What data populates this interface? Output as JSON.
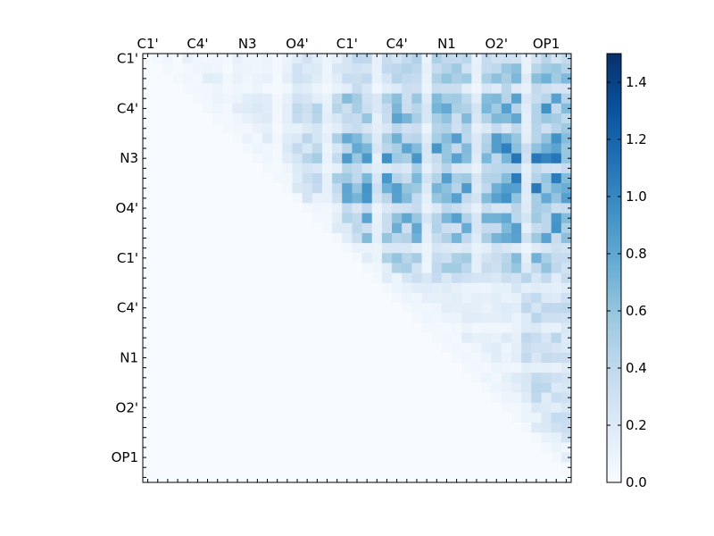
{
  "chart_data": {
    "type": "heatmap",
    "n": 43,
    "x_tick_labels": [
      "C1'",
      "C4'",
      "N3",
      "O4'",
      "C1'",
      "C4'",
      "N1",
      "O2'",
      "OP1"
    ],
    "y_tick_labels": [
      "C1'",
      "C4'",
      "N3",
      "O4'",
      "C1'",
      "C4'",
      "N1",
      "O2'",
      "OP1"
    ],
    "tick_indices": [
      0,
      5,
      10,
      15,
      20,
      25,
      30,
      35,
      40
    ],
    "colorbar": {
      "min": 0.0,
      "max": 1.5,
      "ticks": [
        "0.0",
        "0.2",
        "0.4",
        "0.6",
        "0.8",
        "1.0",
        "1.2",
        "1.4"
      ],
      "tick_values": [
        0.0,
        0.2,
        0.4,
        0.6,
        0.8,
        1.0,
        1.2,
        1.4
      ],
      "colormap": "Blues",
      "colormap_stops": [
        "#f7fbff",
        "#deebf7",
        "#c6dbef",
        "#9ecae1",
        "#6baed6",
        "#4292c6",
        "#2171b5",
        "#08519c",
        "#08306b"
      ]
    },
    "matrix": "upper-triangular (zero on and below the diagonal); estimated from image"
  }
}
